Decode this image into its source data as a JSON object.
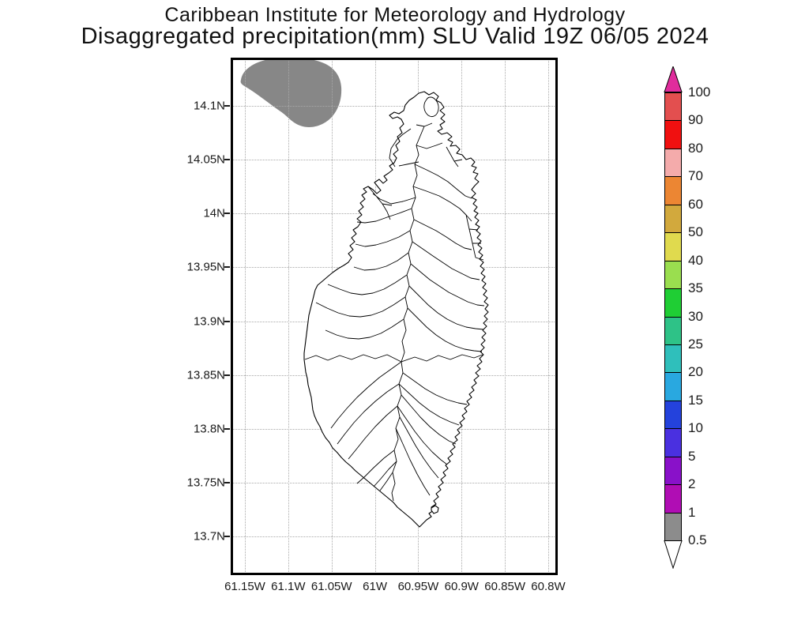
{
  "header": {
    "line1": "Caribbean Institute for Meteorology and Hydrology",
    "line2": "Disaggregated precipitation(mm) SLU Valid 19Z 06/05 2024"
  },
  "map": {
    "lat_ticks": [
      "14.1N",
      "14.05N",
      "14N",
      "13.95N",
      "13.9N",
      "13.85N",
      "13.8N",
      "13.75N",
      "13.7N"
    ],
    "lon_ticks": [
      "61.15W",
      "61.1W",
      "61.05W",
      "61W",
      "60.95W",
      "60.9W",
      "60.85W",
      "60.8W"
    ],
    "shaded_region": {
      "value_range": "0.5-1",
      "color": "#878787"
    }
  },
  "colorbar": {
    "tick_labels": [
      "100",
      "90",
      "80",
      "70",
      "60",
      "50",
      "40",
      "35",
      "30",
      "25",
      "20",
      "15",
      "10",
      "5",
      "2",
      "1",
      "0.5"
    ],
    "segment_colors_top_to_bottom": [
      "#E34F4F",
      "#F01010",
      "#F4ABAB",
      "#EC8633",
      "#D2A93D",
      "#E0DA4E",
      "#9ADE4F",
      "#1FCE34",
      "#2EC287",
      "#2FBFBB",
      "#29A8E0",
      "#2442DC",
      "#4A30E0",
      "#8911C9",
      "#B00DB4",
      "#8C8C8C"
    ],
    "top_arrow_color": "#E02C9C",
    "bottom_arrow_color": "#FFFFFF"
  }
}
